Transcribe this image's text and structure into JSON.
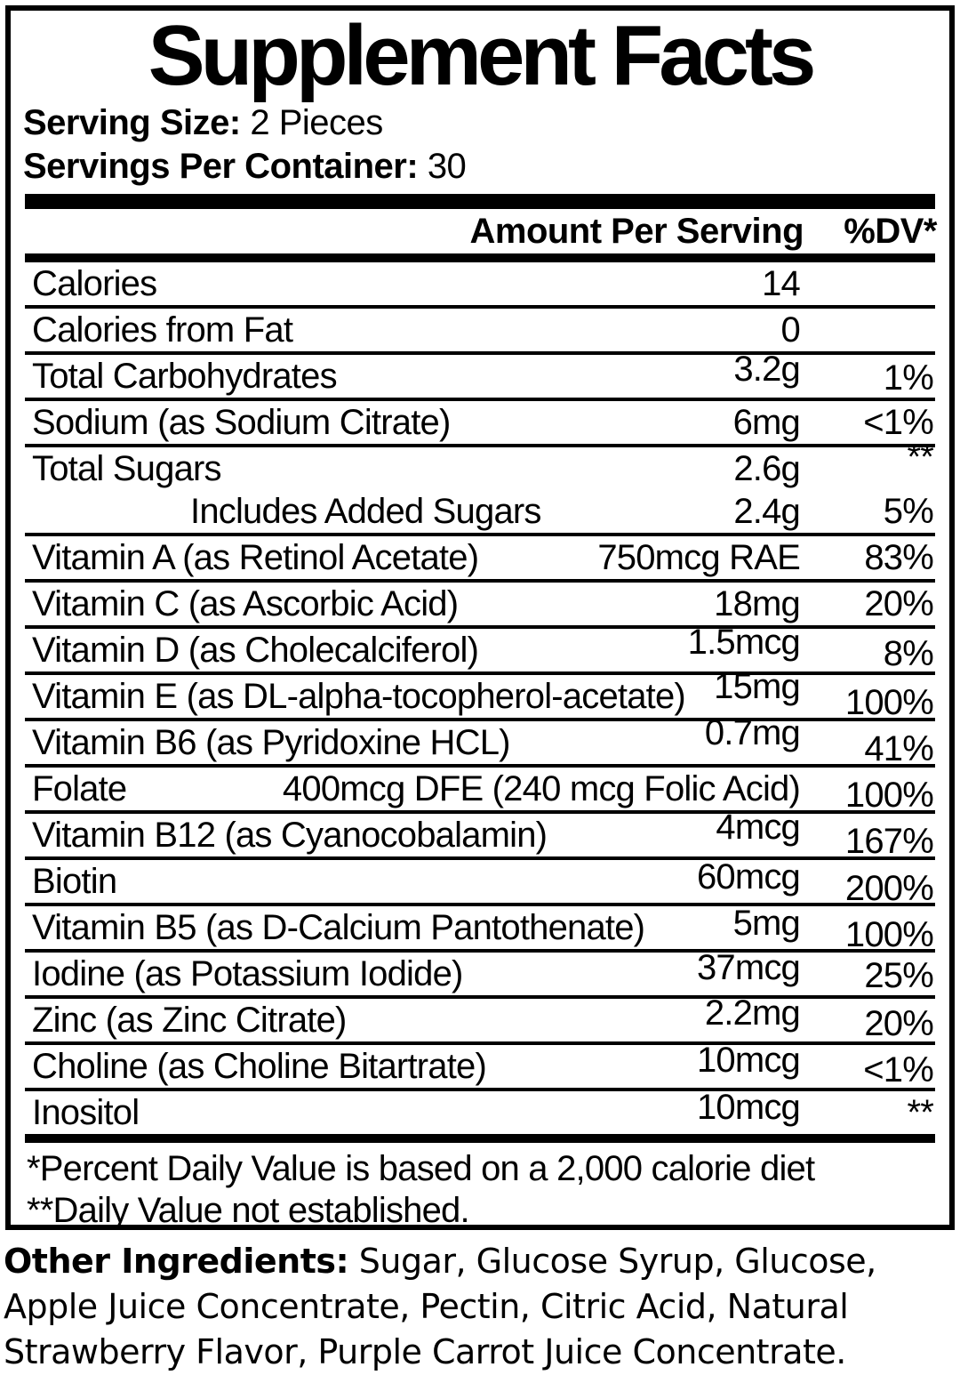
{
  "label": {
    "title": "Supplement Facts",
    "serving_size_label": "Serving Size:",
    "serving_size_value": "2 Pieces",
    "servings_per_container_label": "Servings Per Container:",
    "servings_per_container_value": "30",
    "columns": {
      "amount": "Amount Per Serving",
      "dv": "%DV*"
    },
    "rows": [
      {
        "name": "Calories",
        "amount": "14",
        "dv": ""
      },
      {
        "name": "Calories from Fat",
        "amount": "0",
        "dv": ""
      },
      {
        "name": "Total Carbohydrates",
        "amount": "3.2g",
        "dv": "1%"
      },
      {
        "name": "Sodium (as Sodium Citrate)",
        "amount": "6mg",
        "dv": "<1%"
      },
      {
        "name": "Total Sugars",
        "amount": "2.6g",
        "dv": "**",
        "sub_row": {
          "name": "Includes Added Sugars",
          "amount": "2.4g",
          "dv": "5%"
        }
      },
      {
        "name": "Vitamin A (as Retinol Acetate)",
        "amount": "750mcg RAE",
        "dv": "83%"
      },
      {
        "name": "Vitamin C (as Ascorbic Acid)",
        "amount": "18mg",
        "dv": "20%"
      },
      {
        "name": "Vitamin D (as Cholecalciferol)",
        "amount": "1.5mcg",
        "dv": "8%"
      },
      {
        "name": "Vitamin E (as DL-alpha-tocopherol-acetate)",
        "amount": "15mg",
        "dv": "100%"
      },
      {
        "name": "Vitamin B6 (as Pyridoxine HCL)",
        "amount": "0.7mg",
        "dv": "41%"
      },
      {
        "name": "Folate",
        "amount": "400mcg DFE (240 mcg Folic Acid)",
        "dv": "100%"
      },
      {
        "name": "Vitamin B12 (as Cyanocobalamin)",
        "amount": "4mcg",
        "dv": "167%"
      },
      {
        "name": "Biotin",
        "amount": "60mcg",
        "dv": "200%"
      },
      {
        "name": "Vitamin B5 (as D-Calcium Pantothenate)",
        "amount": "5mg",
        "dv": "100%"
      },
      {
        "name": "Iodine (as Potassium Iodide)",
        "amount": "37mcg",
        "dv": "25%"
      },
      {
        "name": "Zinc (as Zinc Citrate)",
        "amount": "2.2mg",
        "dv": "20%"
      },
      {
        "name": "Choline (as Choline Bitartrate)",
        "amount": "10mcg",
        "dv": "<1%"
      },
      {
        "name": "Inositol",
        "amount": "10mcg",
        "dv": "**"
      }
    ],
    "footnotes": [
      "*Percent Daily Value is based on a 2,000 calorie diet",
      "**Daily Value not established."
    ],
    "other_ingredients_label": "Other Ingredients:",
    "other_ingredients_text": " Sugar, Glucose Syrup, Glucose, Apple Juice Concentrate, Pectin, Citric Acid, Natural Strawberry Flavor, Purple Carrot Juice Concentrate.",
    "colors": {
      "text": "#000000",
      "background": "#ffffff"
    }
  }
}
